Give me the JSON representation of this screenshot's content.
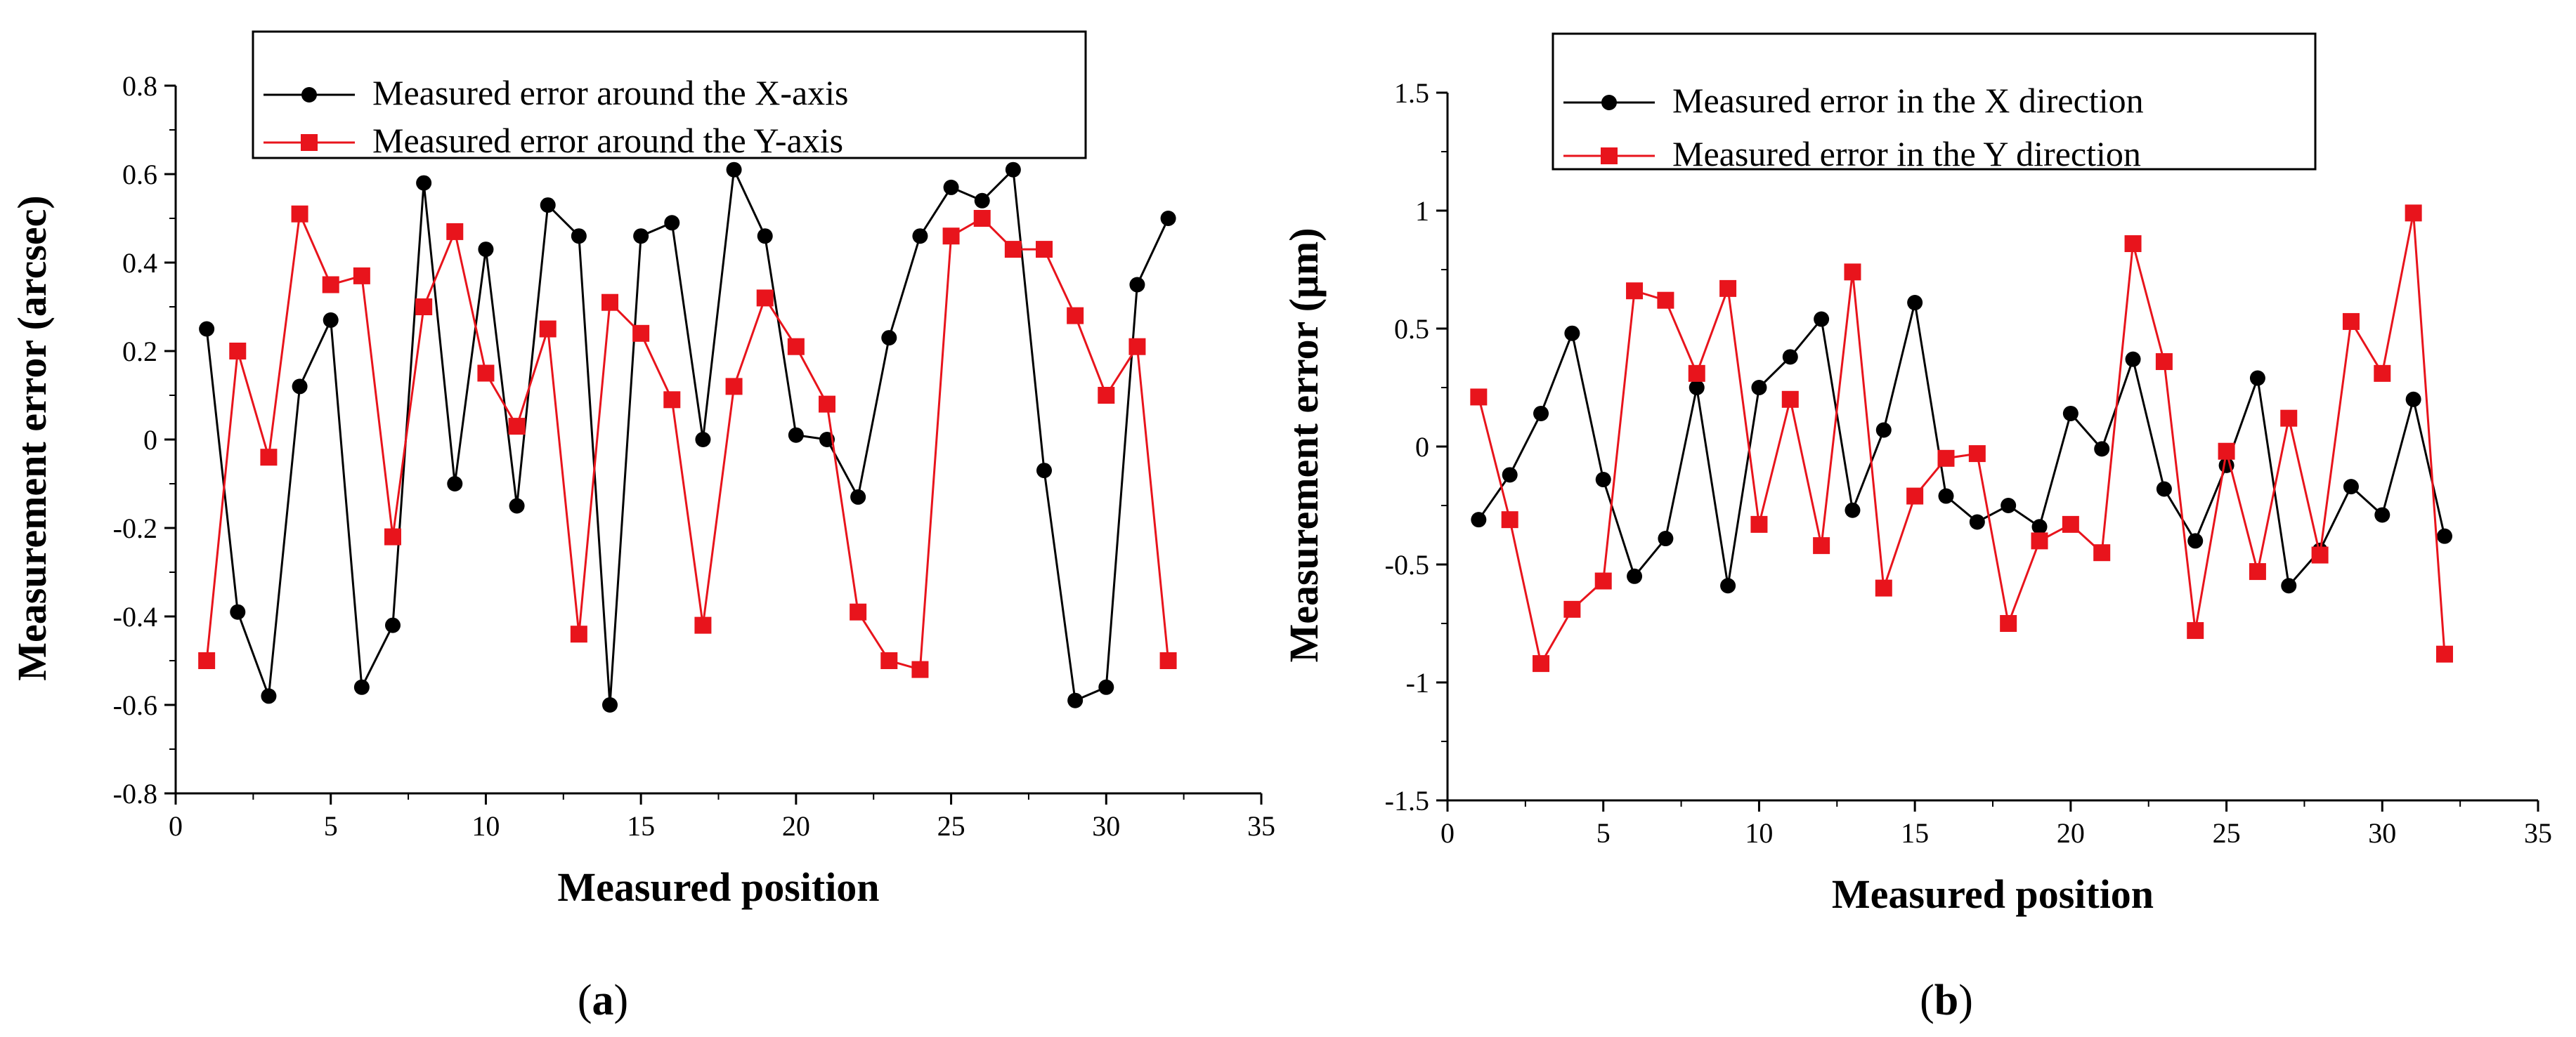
{
  "chart_data": [
    {
      "type": "line",
      "panel_label": "(a)",
      "xlabel": "Measured position",
      "ylabel": "Measurement error (arcsec)",
      "xlim": [
        0,
        35
      ],
      "ylim": [
        -0.8,
        0.8
      ],
      "xticks": [
        0,
        5,
        10,
        15,
        20,
        25,
        30,
        35
      ],
      "yticks": [
        -0.8,
        -0.6,
        -0.4,
        -0.2,
        0,
        0.2,
        0.4,
        0.6,
        0.8
      ],
      "ytick_labels": [
        "-0.8",
        "-0.6",
        "-0.4",
        "-0.2",
        "0",
        "0.2",
        "0.4",
        "0.6",
        "0.8"
      ],
      "grid": false,
      "legend_position": "top-center",
      "x": [
        1,
        2,
        3,
        4,
        5,
        6,
        7,
        8,
        9,
        10,
        11,
        12,
        13,
        14,
        15,
        16,
        17,
        18,
        19,
        20,
        21,
        22,
        23,
        24,
        25,
        26,
        27,
        28,
        29,
        30,
        31,
        32
      ],
      "series": [
        {
          "name": "Measured error around the X-axis",
          "color": "#000000",
          "marker": "circle",
          "values": [
            0.25,
            -0.39,
            -0.58,
            0.12,
            0.27,
            -0.56,
            -0.42,
            0.58,
            -0.1,
            0.43,
            -0.15,
            0.53,
            0.46,
            -0.6,
            0.46,
            0.49,
            0.0,
            0.61,
            0.46,
            0.01,
            0.0,
            -0.13,
            0.23,
            0.46,
            0.57,
            0.54,
            0.61,
            -0.07,
            -0.59,
            -0.56,
            0.35,
            0.5
          ]
        },
        {
          "name": "Measured error around the Y-axis",
          "color": "#e8141c",
          "marker": "square",
          "values": [
            -0.5,
            0.2,
            -0.04,
            0.51,
            0.35,
            0.37,
            -0.22,
            0.3,
            0.47,
            0.15,
            0.03,
            0.25,
            -0.44,
            0.31,
            0.24,
            0.09,
            -0.42,
            0.12,
            0.32,
            0.21,
            0.08,
            -0.39,
            -0.5,
            -0.52,
            0.46,
            0.5,
            0.43,
            0.43,
            0.28,
            0.1,
            0.21,
            -0.5
          ]
        }
      ]
    },
    {
      "type": "line",
      "panel_label": "(b)",
      "xlabel": "Measured position",
      "ylabel": "Measurement error (μm)",
      "xlim": [
        0,
        35
      ],
      "ylim": [
        -1.5,
        1.5
      ],
      "xticks": [
        0,
        5,
        10,
        15,
        20,
        25,
        30,
        35
      ],
      "yticks": [
        -1.5,
        -1,
        -0.5,
        0,
        0.5,
        1,
        1.5
      ],
      "ytick_labels": [
        "-1.5",
        "-1",
        "-0.5",
        "0",
        "0.5",
        "1",
        "1.5"
      ],
      "grid": false,
      "legend_position": "top-center",
      "x": [
        1,
        2,
        3,
        4,
        5,
        6,
        7,
        8,
        9,
        10,
        11,
        12,
        13,
        14,
        15,
        16,
        17,
        18,
        19,
        20,
        21,
        22,
        23,
        24,
        25,
        26,
        27,
        28,
        29,
        30,
        31,
        32
      ],
      "series": [
        {
          "name": "Measured error in the X direction",
          "color": "#000000",
          "marker": "circle",
          "values": [
            -0.31,
            -0.12,
            0.14,
            0.48,
            -0.14,
            -0.55,
            -0.39,
            0.25,
            -0.59,
            0.25,
            0.38,
            0.54,
            -0.27,
            0.07,
            0.61,
            -0.21,
            -0.32,
            -0.25,
            -0.34,
            0.14,
            -0.01,
            0.37,
            -0.18,
            -0.4,
            -0.08,
            0.29,
            -0.59,
            -0.44,
            -0.17,
            -0.29,
            0.2,
            -0.38
          ]
        },
        {
          "name": "Measured error in the Y direction",
          "color": "#e8141c",
          "marker": "square",
          "values": [
            0.21,
            -0.31,
            -0.92,
            -0.69,
            -0.57,
            0.66,
            0.62,
            0.31,
            0.67,
            -0.33,
            0.2,
            -0.42,
            0.74,
            -0.6,
            -0.21,
            -0.05,
            -0.03,
            -0.75,
            -0.4,
            -0.33,
            -0.45,
            0.86,
            0.36,
            -0.78,
            -0.02,
            -0.53,
            0.12,
            -0.46,
            0.53,
            0.31,
            0.99,
            -0.88
          ]
        }
      ]
    }
  ]
}
